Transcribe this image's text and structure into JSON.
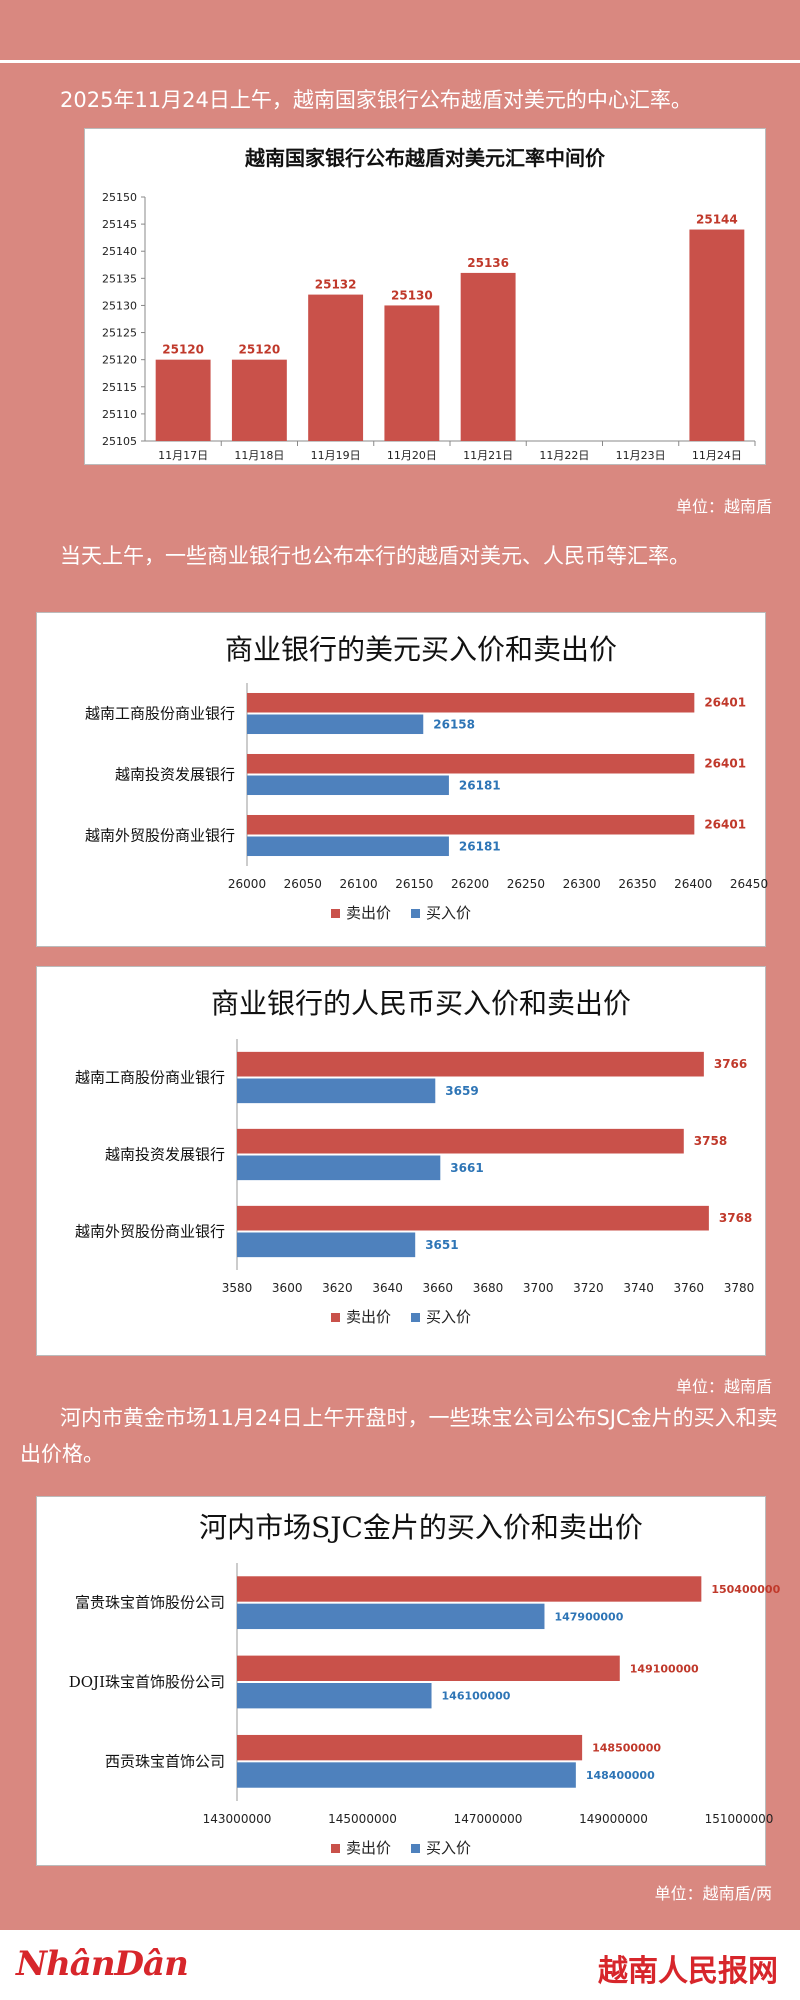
{
  "intro_text": "2025年11月24日上午，越南国家银行公布越盾对美元的中心汇率。",
  "unit_1": "单位：越南盾",
  "text_2": "当天上午，一些商业银行也公布本行的越盾对美元、人民币等汇率。",
  "unit_2": "单位：越南盾",
  "text_3": "河内市黄金市场11月24日上午开盘时，一些珠宝公司公布SJC金片的买入和卖出价格。",
  "unit_3": "单位：越南盾/两",
  "footer": {
    "left_logo": "NhânDân",
    "right_logo": "越南人民报网"
  },
  "colors": {
    "sell": "#c9514a",
    "buy": "#4e81bd",
    "sell_label": "#c0392b",
    "buy_label": "#2e75b6",
    "background": "#d98880"
  },
  "chart_data": [
    {
      "type": "bar",
      "title": "越南国家银行公布越盾对美元汇率中间价",
      "categories": [
        "11月17日",
        "11月18日",
        "11月19日",
        "11月20日",
        "11月21日",
        "11月22日",
        "11月23日",
        "11月24日"
      ],
      "values": [
        25120,
        25120,
        25132,
        25130,
        25136,
        null,
        null,
        25144
      ],
      "ylim": [
        25105,
        25150
      ],
      "yticks": [
        25105,
        25110,
        25115,
        25120,
        25125,
        25130,
        25135,
        25140,
        25145,
        25150
      ],
      "grid": false,
      "legend": "none"
    },
    {
      "type": "bar",
      "orientation": "horizontal",
      "title": "商业银行的美元买入价和卖出价",
      "categories": [
        "越南工商股份商业银行",
        "越南投资发展银行",
        "越南外贸股份商业银行"
      ],
      "series": [
        {
          "name": "卖出价",
          "values": [
            26401,
            26401,
            26401
          ]
        },
        {
          "name": "买入价",
          "values": [
            26158,
            26181,
            26181
          ]
        }
      ],
      "xlim": [
        26000,
        26450
      ],
      "xticks": [
        26000,
        26050,
        26100,
        26150,
        26200,
        26250,
        26300,
        26350,
        26400,
        26450
      ],
      "legend": "bottom"
    },
    {
      "type": "bar",
      "orientation": "horizontal",
      "title": "商业银行的人民币买入价和卖出价",
      "categories": [
        "越南工商股份商业银行",
        "越南投资发展银行",
        "越南外贸股份商业银行"
      ],
      "series": [
        {
          "name": "卖出价",
          "values": [
            3766,
            3758,
            3768
          ]
        },
        {
          "name": "买入价",
          "values": [
            3659,
            3661,
            3651
          ]
        }
      ],
      "xlim": [
        3580,
        3780
      ],
      "xticks": [
        3580,
        3600,
        3620,
        3640,
        3660,
        3680,
        3700,
        3720,
        3740,
        3760,
        3780
      ],
      "legend": "bottom"
    },
    {
      "type": "bar",
      "orientation": "horizontal",
      "title": "河内市场SJC金片的买入价和卖出价",
      "categories": [
        "富贵珠宝首饰股份公司",
        "DOJI珠宝首饰股份公司",
        "西贡珠宝首饰公司"
      ],
      "series": [
        {
          "name": "卖出价",
          "values": [
            150400000,
            149100000,
            148500000
          ]
        },
        {
          "name": "买入价",
          "values": [
            147900000,
            146100000,
            148400000
          ]
        }
      ],
      "xlim": [
        143000000,
        151000000
      ],
      "xticks": [
        143000000,
        145000000,
        147000000,
        149000000,
        151000000
      ],
      "legend": "bottom"
    }
  ]
}
